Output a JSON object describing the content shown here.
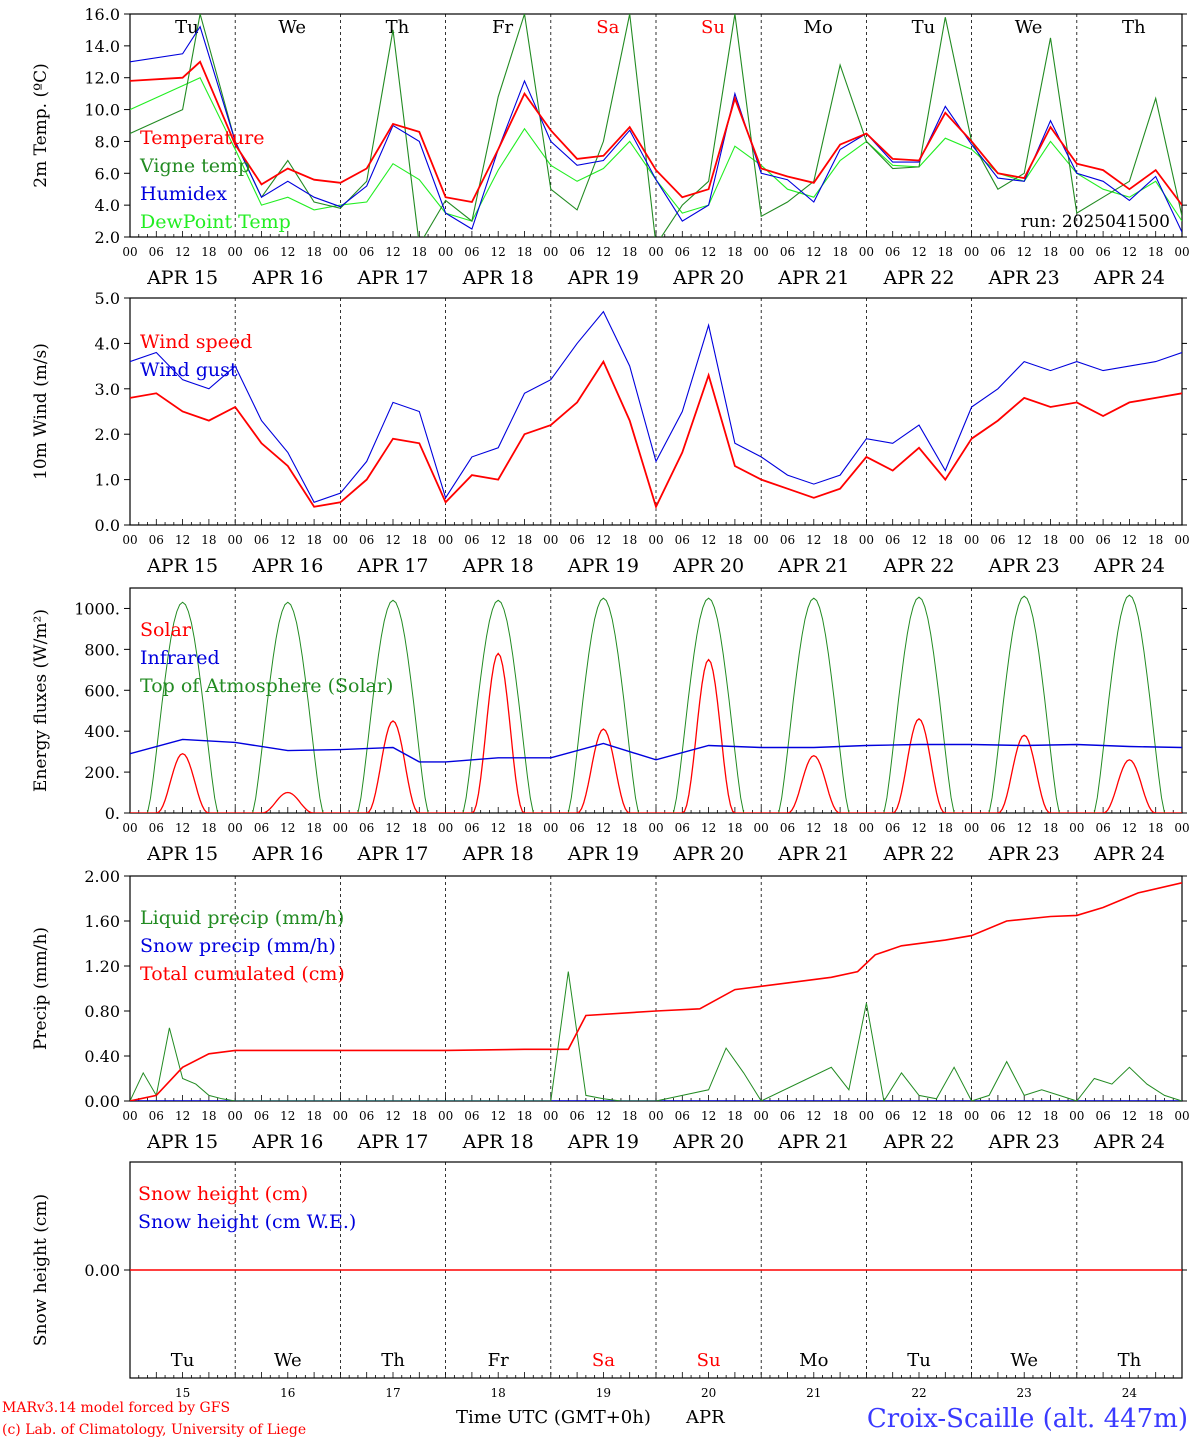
{
  "footer": {
    "model": "MARv3.14 model forced by GFS",
    "credit": "(c) Lab. of Climatology, University of Liege",
    "xlabel": "Time UTC (GMT+0h)",
    "month": "APR",
    "station": "Croix-Scaille (alt. 447m)"
  },
  "colors": {
    "red": "#ff0000",
    "green": "#228b22",
    "lightgreen": "#22ee22",
    "blue": "#0000dd",
    "axis": "#000000",
    "station": "#3a3aff"
  },
  "days": {
    "names": [
      "Tu",
      "We",
      "Th",
      "Fr",
      "Sa",
      "Su",
      "Mo",
      "Tu",
      "We",
      "Th"
    ],
    "weekend": [
      false,
      false,
      false,
      false,
      true,
      true,
      false,
      false,
      false,
      false
    ],
    "date_labels": [
      "APR 15",
      "APR 16",
      "APR 17",
      "APR 18",
      "APR 19",
      "APR 20",
      "APR 21",
      "APR 22",
      "APR 23",
      "APR 24"
    ],
    "day_numbers": [
      "15",
      "16",
      "17",
      "18",
      "19",
      "20",
      "21",
      "22",
      "23",
      "24"
    ],
    "hour_ticks": [
      "00",
      "06",
      "12",
      "18"
    ],
    "final_tick": "00"
  },
  "chart_data": [
    {
      "type": "line",
      "ylabel": "2m Temp. (ºC)",
      "ylim": [
        2.0,
        16.0
      ],
      "yticks": [
        "2.0",
        "4.0",
        "6.0",
        "8.0",
        "10.0",
        "12.0",
        "14.0",
        "16.0"
      ],
      "annotation": "run: 2025041500",
      "x_hours": [
        0,
        12,
        16,
        24,
        30,
        36,
        42,
        48,
        54,
        60,
        66,
        72,
        78,
        84,
        90,
        96,
        102,
        108,
        114,
        120,
        126,
        132,
        138,
        144,
        150,
        156,
        162,
        168,
        174,
        180,
        186,
        192,
        198,
        204,
        210,
        216,
        222,
        228,
        234,
        240
      ],
      "series": [
        {
          "name": "Temperature",
          "color": "red",
          "values": [
            11.8,
            12.0,
            13.0,
            7.8,
            5.3,
            6.3,
            5.6,
            5.4,
            6.3,
            9.1,
            8.6,
            4.5,
            4.2,
            7.5,
            11.0,
            8.7,
            6.9,
            7.1,
            8.9,
            6.2,
            4.5,
            5.0,
            10.7,
            6.3,
            5.8,
            5.4,
            7.8,
            8.5,
            6.9,
            6.8,
            9.8,
            8.0,
            6.0,
            5.7,
            8.9,
            6.6,
            6.2,
            5.0,
            6.2,
            4.0
          ]
        },
        {
          "name": "Vigne temp",
          "color": "green",
          "values": [
            8.5,
            10.0,
            16.0,
            8.0,
            4.5,
            6.8,
            4.2,
            3.8,
            5.5,
            15.0,
            1.5,
            4.3,
            3.0,
            10.8,
            16.0,
            5.0,
            3.7,
            8.0,
            16.0,
            1.5,
            4.0,
            5.5,
            16.0,
            3.3,
            4.2,
            5.5,
            12.8,
            8.0,
            6.3,
            6.4,
            15.8,
            8.0,
            5.0,
            6.0,
            14.5,
            3.5,
            4.5,
            5.5,
            10.7,
            3.3
          ]
        },
        {
          "name": "Humidex",
          "color": "blue",
          "values": [
            13.0,
            13.5,
            15.2,
            8.0,
            4.5,
            5.5,
            4.5,
            3.9,
            5.2,
            9.0,
            8.0,
            3.5,
            2.5,
            7.5,
            11.8,
            8.0,
            6.5,
            6.8,
            8.7,
            5.6,
            3.0,
            4.0,
            11.0,
            6.0,
            5.6,
            4.2,
            7.5,
            8.5,
            6.7,
            6.7,
            10.2,
            7.8,
            5.7,
            5.5,
            9.3,
            6.0,
            5.5,
            4.3,
            5.8,
            2.3
          ]
        },
        {
          "name": "DewPoint Temp",
          "color": "lightgreen",
          "values": [
            10.0,
            11.5,
            12.0,
            7.5,
            4.0,
            4.5,
            3.7,
            4.0,
            4.2,
            6.6,
            5.6,
            3.5,
            3.0,
            6.2,
            8.8,
            6.5,
            5.5,
            6.3,
            8.0,
            5.6,
            3.5,
            4.0,
            7.7,
            6.5,
            5.0,
            4.5,
            6.8,
            8.0,
            6.5,
            6.4,
            8.2,
            7.5,
            6.0,
            5.5,
            8.0,
            6.0,
            5.0,
            4.5,
            5.5,
            3.0
          ]
        }
      ]
    },
    {
      "type": "line",
      "ylabel": "10m Wind (m/s)",
      "ylim": [
        0.0,
        5.0
      ],
      "yticks": [
        "0.0",
        "1.0",
        "2.0",
        "3.0",
        "4.0",
        "5.0"
      ],
      "x_hours": [
        0,
        6,
        12,
        18,
        24,
        30,
        36,
        42,
        48,
        54,
        60,
        66,
        72,
        78,
        84,
        90,
        96,
        102,
        108,
        114,
        120,
        126,
        132,
        138,
        144,
        150,
        156,
        162,
        168,
        174,
        180,
        186,
        192,
        198,
        204,
        210,
        216,
        222,
        228,
        234,
        240
      ],
      "series": [
        {
          "name": "Wind speed",
          "color": "red",
          "values": [
            2.8,
            2.9,
            2.5,
            2.3,
            2.6,
            1.8,
            1.3,
            0.4,
            0.5,
            1.0,
            1.9,
            1.8,
            0.5,
            1.1,
            1.0,
            2.0,
            2.2,
            2.7,
            3.6,
            2.3,
            0.4,
            1.6,
            3.3,
            1.3,
            1.0,
            0.8,
            0.6,
            0.8,
            1.5,
            1.2,
            1.7,
            1.0,
            1.9,
            2.3,
            2.8,
            2.6,
            2.7,
            2.4,
            2.7,
            2.8,
            2.9
          ]
        },
        {
          "name": "Wind gust",
          "color": "blue",
          "values": [
            3.6,
            3.8,
            3.2,
            3.0,
            3.5,
            2.3,
            1.6,
            0.5,
            0.7,
            1.4,
            2.7,
            2.5,
            0.6,
            1.5,
            1.7,
            2.9,
            3.2,
            4.0,
            4.7,
            3.5,
            1.4,
            2.5,
            4.4,
            1.8,
            1.5,
            1.1,
            0.9,
            1.1,
            1.9,
            1.8,
            2.2,
            1.2,
            2.6,
            3.0,
            3.6,
            3.4,
            3.6,
            3.4,
            3.5,
            3.6,
            3.8
          ]
        }
      ]
    },
    {
      "type": "line",
      "ylabel": "Energy fluxes (W/m²)",
      "ylim": [
        0,
        1100
      ],
      "yticks": [
        "0.",
        "200.",
        "400.",
        "600.",
        "800.",
        "1000."
      ],
      "series": [
        {
          "name": "Solar",
          "color": "red",
          "peaks": [
            290,
            100,
            450,
            780,
            410,
            750,
            280,
            460,
            380,
            260
          ]
        },
        {
          "name": "Infrared",
          "color": "blue",
          "x_hours": [
            0,
            12,
            24,
            36,
            48,
            60,
            66,
            72,
            84,
            96,
            108,
            120,
            132,
            144,
            156,
            168,
            180,
            192,
            204,
            216,
            228,
            240
          ],
          "values": [
            290,
            360,
            345,
            305,
            310,
            320,
            250,
            250,
            270,
            270,
            340,
            260,
            330,
            320,
            320,
            330,
            335,
            335,
            330,
            335,
            325,
            320
          ]
        },
        {
          "name": "Top of Atmosphere (Solar)",
          "color": "green",
          "peaks": [
            1030,
            1030,
            1040,
            1040,
            1050,
            1050,
            1050,
            1055,
            1060,
            1065
          ]
        }
      ]
    },
    {
      "type": "line",
      "ylabel": "Precip (mm/h)",
      "ylim": [
        0.0,
        2.0
      ],
      "yticks": [
        "0.00",
        "0.40",
        "0.80",
        "1.20",
        "1.60",
        "2.00"
      ],
      "series": [
        {
          "name": "Liquid precip (mm/h)",
          "color": "green",
          "x_hours": [
            0,
            3,
            6,
            9,
            12,
            15,
            18,
            21,
            24,
            48,
            96,
            100,
            104,
            108,
            112,
            116,
            120,
            132,
            136,
            140,
            144,
            160,
            164,
            168,
            172,
            176,
            180,
            184,
            188,
            192,
            196,
            200,
            204,
            208,
            212,
            216,
            220,
            224,
            228,
            232,
            236,
            240
          ],
          "values": [
            0,
            0.25,
            0.05,
            0.65,
            0.2,
            0.15,
            0.05,
            0.02,
            0,
            0,
            0,
            1.15,
            0.05,
            0.02,
            0,
            0,
            0,
            0.1,
            0.47,
            0.25,
            0,
            0.3,
            0.1,
            0.87,
            0,
            0.25,
            0.05,
            0.02,
            0.3,
            0,
            0.05,
            0.35,
            0.05,
            0.1,
            0.05,
            0,
            0.2,
            0.15,
            0.3,
            0.15,
            0.05,
            0
          ]
        },
        {
          "name": "Snow precip (mm/h)",
          "color": "blue",
          "values": [
            0
          ]
        },
        {
          "name": "Total cumulated (cm)",
          "color": "red",
          "x_hours": [
            0,
            6,
            12,
            18,
            24,
            48,
            72,
            90,
            100,
            104,
            120,
            130,
            138,
            150,
            160,
            166,
            170,
            176,
            186,
            192,
            200,
            210,
            216,
            222,
            230,
            240
          ],
          "values": [
            0,
            0.05,
            0.3,
            0.42,
            0.45,
            0.45,
            0.45,
            0.46,
            0.46,
            0.76,
            0.8,
            0.82,
            0.99,
            1.05,
            1.1,
            1.15,
            1.3,
            1.38,
            1.43,
            1.47,
            1.6,
            1.64,
            1.65,
            1.72,
            1.85,
            1.94
          ]
        }
      ]
    },
    {
      "type": "line",
      "ylabel": "Snow height (cm)",
      "yticks": [
        "0.00"
      ],
      "series": [
        {
          "name": "Snow height (cm)",
          "color": "red",
          "values": [
            0
          ]
        },
        {
          "name": "Snow height (cm W.E.)",
          "color": "blue",
          "values": [
            0
          ]
        }
      ]
    }
  ]
}
